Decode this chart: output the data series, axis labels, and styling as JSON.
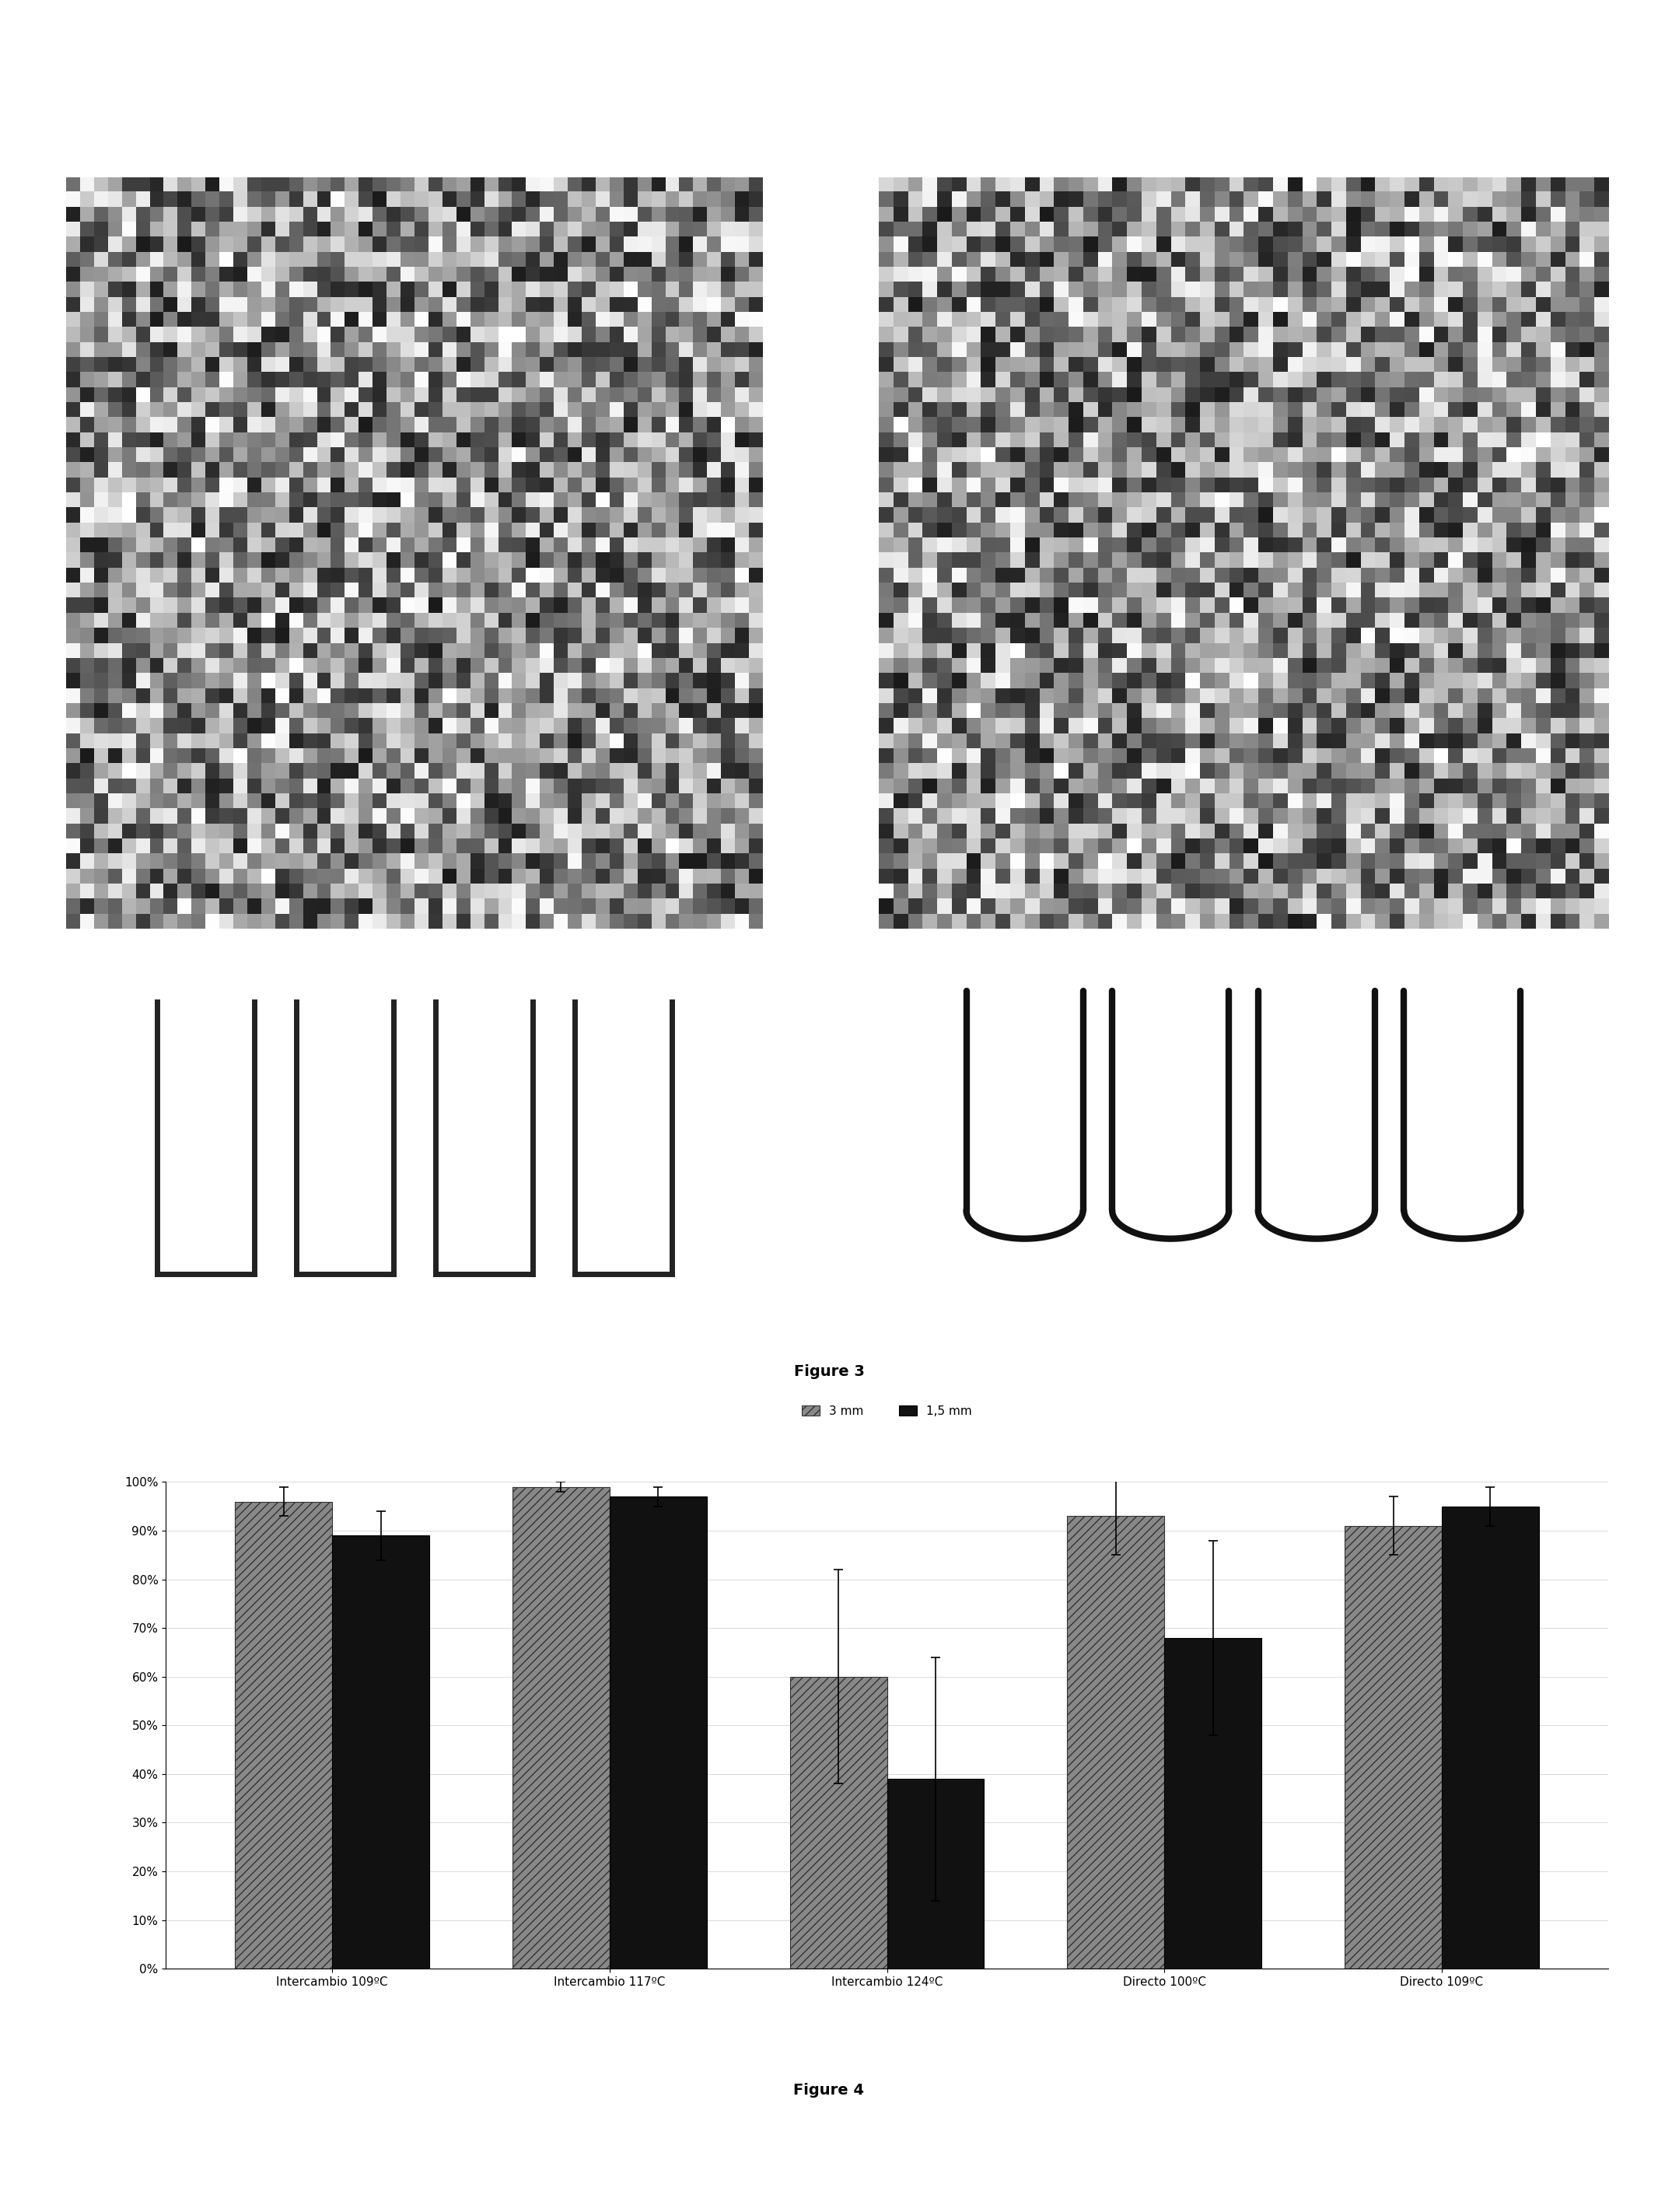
{
  "figure_title_3": "Figure 3",
  "figure_title_4": "Figure 4",
  "categories": [
    "Intercambio 109ºC",
    "Intercambio 117ºC",
    "Intercambio 124ºC",
    "Directo 100ºC",
    "Directo 109ºC"
  ],
  "series_3mm": [
    0.96,
    0.99,
    0.6,
    0.93,
    0.91
  ],
  "series_15mm": [
    0.89,
    0.97,
    0.39,
    0.68,
    0.95
  ],
  "err_3mm": [
    0.03,
    0.01,
    0.22,
    0.08,
    0.06
  ],
  "err_15mm": [
    0.05,
    0.02,
    0.25,
    0.2,
    0.04
  ],
  "legend_3mm": "3 mm",
  "legend_15mm": "1,5 mm",
  "bar_color_3mm": "#808080",
  "bar_color_15mm": "#1a1a1a",
  "bar_hatch_3mm": "///",
  "bar_hatch_15mm": "",
  "ytick_labels": [
    "0%",
    "10%",
    "20%",
    "30%",
    "40%",
    "50%",
    "60%",
    "70%",
    "80%",
    "90%",
    "100%"
  ],
  "ytick_values": [
    0.0,
    0.1,
    0.2,
    0.3,
    0.4,
    0.5,
    0.6,
    0.7,
    0.8,
    0.9,
    1.0
  ],
  "background_color": "#ffffff",
  "bar_width": 0.35,
  "figure3_caption_fontsize": 14,
  "figure4_caption_fontsize": 14,
  "axis_fontsize": 11,
  "legend_fontsize": 11
}
